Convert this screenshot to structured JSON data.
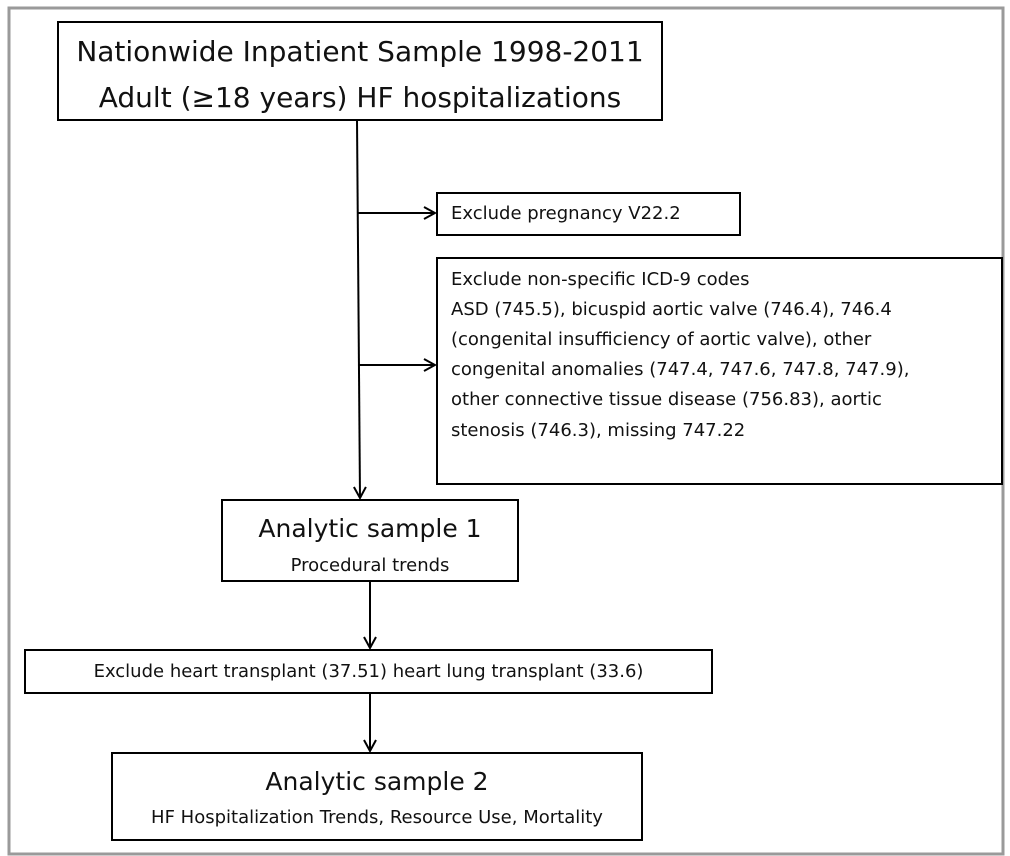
{
  "nodes": [
    {
      "lines": [
        "Nationwide Inpatient Sample 1998-2011",
        "Adult (≥18 years) HF hospitalizations"
      ]
    },
    {
      "lines": [
        "Exclude pregnancy V22.2"
      ]
    },
    {
      "lines": [
        "Exclude non-specific ICD-9 codes",
        "ASD (745.5), bicuspid aortic valve (746.4), 746.4",
        "(congenital insufficiency of aortic valve), other",
        "congenital anomalies (747.4, 747.6, 747.8, 747.9),",
        "other connective tissue disease (756.83), aortic",
        "stenosis (746.3), missing 747.22"
      ]
    },
    {
      "lines": [
        "Analytic sample 1",
        "Procedural trends"
      ]
    },
    {
      "lines": [
        "Exclude heart transplant (37.51) heart lung transplant (33.6)"
      ]
    },
    {
      "lines": [
        "Analytic sample 2",
        "HF Hospitalization Trends, Resource Use, Mortality"
      ]
    }
  ]
}
